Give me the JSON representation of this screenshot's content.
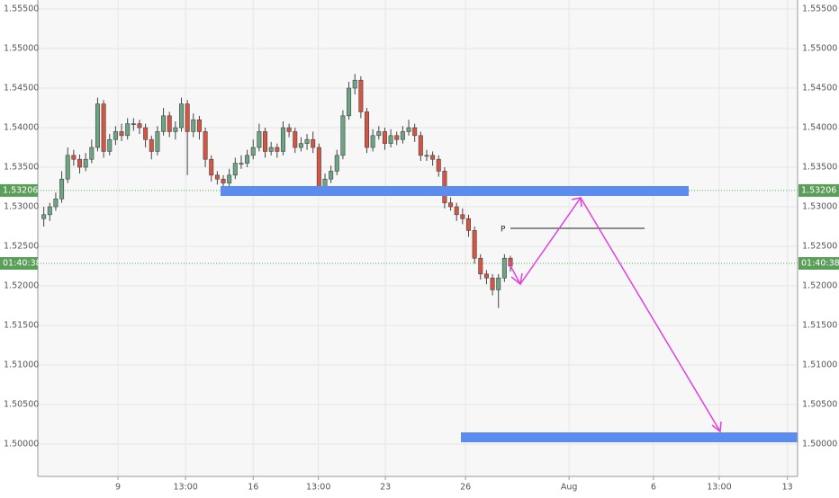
{
  "chart_data": {
    "type": "candlestick",
    "ylim": [
      1.49591,
      1.55614
    ],
    "yticks": [
      {
        "value": 1.5,
        "label": "1.50000"
      },
      {
        "value": 1.505,
        "label": "1.50500"
      },
      {
        "value": 1.51,
        "label": "1.51000"
      },
      {
        "value": 1.515,
        "label": "1.51500"
      },
      {
        "value": 1.52,
        "label": "1.52000"
      },
      {
        "value": 1.525,
        "label": "1.52500"
      },
      {
        "value": 1.53,
        "label": "1.53000"
      },
      {
        "value": 1.535,
        "label": "1.53500"
      },
      {
        "value": 1.54,
        "label": "1.54000"
      },
      {
        "value": 1.545,
        "label": "1.54500"
      },
      {
        "value": 1.55,
        "label": "1.55000"
      },
      {
        "value": 1.555,
        "label": "1.55500"
      }
    ],
    "xlim": [
      0,
      127
    ],
    "xticks": [
      {
        "value": 13.4,
        "label": "9"
      },
      {
        "value": 24.7,
        "label": "13:00"
      },
      {
        "value": 36,
        "label": "16"
      },
      {
        "value": 46.9,
        "label": "13:00"
      },
      {
        "value": 58.1,
        "label": "23"
      },
      {
        "value": 71.5,
        "label": "26"
      },
      {
        "value": 88.8,
        "label": "Aug"
      },
      {
        "value": 102.9,
        "label": "6"
      },
      {
        "value": 113.9,
        "label": "13:00"
      },
      {
        "value": 125.3,
        "label": "13"
      }
    ],
    "grid": true,
    "up_color": "#6ba583",
    "down_color": "#d75442",
    "price_levels": [
      {
        "value": 1.53206,
        "label": "1.53206"
      },
      {
        "value": 1.52284,
        "label": "01:40:38"
      }
    ],
    "annotations": {
      "pivot_label": "P"
    },
    "x": [
      1,
      2,
      3,
      4,
      5,
      6,
      7,
      8,
      9,
      10,
      11,
      12,
      13,
      14,
      15,
      16,
      17,
      18,
      19,
      20,
      21,
      22,
      23,
      24,
      25,
      26,
      27,
      28,
      29,
      30,
      31,
      32,
      33,
      34,
      35,
      36,
      37,
      38,
      39,
      40,
      41,
      42,
      43,
      44,
      45,
      46,
      47,
      48,
      49,
      50,
      51,
      52,
      53,
      54,
      55,
      56,
      57,
      58,
      59,
      60,
      61,
      62,
      63,
      64,
      65,
      66,
      67,
      68,
      69,
      70,
      71,
      72,
      73,
      74,
      75,
      76,
      77,
      78,
      79
    ],
    "candles": [
      [
        1.5285,
        1.53,
        1.5275,
        1.529
      ],
      [
        1.529,
        1.5305,
        1.5282,
        1.53
      ],
      [
        1.53,
        1.5318,
        1.5295,
        1.531
      ],
      [
        1.531,
        1.5345,
        1.5305,
        1.5335
      ],
      [
        1.5335,
        1.5375,
        1.533,
        1.5365
      ],
      [
        1.5365,
        1.5372,
        1.5352,
        1.536
      ],
      [
        1.536,
        1.5366,
        1.5342,
        1.535
      ],
      [
        1.535,
        1.5368,
        1.5345,
        1.536
      ],
      [
        1.536,
        1.5385,
        1.5355,
        1.5375
      ],
      [
        1.5375,
        1.5438,
        1.537,
        1.543
      ],
      [
        1.543,
        1.5435,
        1.5362,
        1.537
      ],
      [
        1.537,
        1.5392,
        1.5365,
        1.5385
      ],
      [
        1.5385,
        1.5402,
        1.5378,
        1.5395
      ],
      [
        1.5395,
        1.5405,
        1.5383,
        1.539
      ],
      [
        1.539,
        1.5412,
        1.5385,
        1.5405
      ],
      [
        1.5405,
        1.5412,
        1.5396,
        1.5405
      ],
      [
        1.5405,
        1.541,
        1.5392,
        1.54
      ],
      [
        1.54,
        1.5405,
        1.5375,
        1.5385
      ],
      [
        1.5385,
        1.539,
        1.536,
        1.537
      ],
      [
        1.537,
        1.5402,
        1.5365,
        1.5395
      ],
      [
        1.5395,
        1.5425,
        1.539,
        1.5415
      ],
      [
        1.5415,
        1.542,
        1.5388,
        1.5395
      ],
      [
        1.5395,
        1.5408,
        1.5385,
        1.54
      ],
      [
        1.54,
        1.5438,
        1.5395,
        1.543
      ],
      [
        1.543,
        1.5435,
        1.534,
        1.5395
      ],
      [
        1.5395,
        1.5418,
        1.5388,
        1.541
      ],
      [
        1.541,
        1.5415,
        1.5385,
        1.5395
      ],
      [
        1.5395,
        1.54,
        1.535,
        1.536
      ],
      [
        1.536,
        1.5365,
        1.5332,
        1.534
      ],
      [
        1.534,
        1.5345,
        1.5328,
        1.5335
      ],
      [
        1.5335,
        1.534,
        1.5322,
        1.533
      ],
      [
        1.533,
        1.5348,
        1.5325,
        1.534
      ],
      [
        1.534,
        1.5362,
        1.5335,
        1.5355
      ],
      [
        1.5355,
        1.5365,
        1.5348,
        1.5355
      ],
      [
        1.5355,
        1.5372,
        1.535,
        1.5365
      ],
      [
        1.5365,
        1.5385,
        1.536,
        1.5375
      ],
      [
        1.5375,
        1.5405,
        1.537,
        1.5395
      ],
      [
        1.5395,
        1.54,
        1.5362,
        1.537
      ],
      [
        1.537,
        1.5382,
        1.5365,
        1.5375
      ],
      [
        1.5375,
        1.538,
        1.5362,
        1.537
      ],
      [
        1.537,
        1.5408,
        1.5365,
        1.54
      ],
      [
        1.54,
        1.5405,
        1.5388,
        1.5395
      ],
      [
        1.5395,
        1.54,
        1.5368,
        1.5375
      ],
      [
        1.5375,
        1.5388,
        1.537,
        1.538
      ],
      [
        1.538,
        1.5392,
        1.5372,
        1.5385
      ],
      [
        1.5385,
        1.5395,
        1.5368,
        1.5375
      ],
      [
        1.5375,
        1.538,
        1.5318,
        1.5325
      ],
      [
        1.5325,
        1.5342,
        1.532,
        1.5335
      ],
      [
        1.5335,
        1.5352,
        1.533,
        1.5345
      ],
      [
        1.5345,
        1.5372,
        1.534,
        1.5365
      ],
      [
        1.5365,
        1.5422,
        1.536,
        1.5415
      ],
      [
        1.5415,
        1.5458,
        1.541,
        1.545
      ],
      [
        1.545,
        1.5468,
        1.5442,
        1.546
      ],
      [
        1.546,
        1.5465,
        1.5412,
        1.542
      ],
      [
        1.542,
        1.5425,
        1.5368,
        1.5375
      ],
      [
        1.5375,
        1.5398,
        1.537,
        1.539
      ],
      [
        1.539,
        1.5402,
        1.5385,
        1.5395
      ],
      [
        1.5395,
        1.54,
        1.5372,
        1.538
      ],
      [
        1.538,
        1.5398,
        1.5375,
        1.539
      ],
      [
        1.539,
        1.5395,
        1.5378,
        1.5385
      ],
      [
        1.5385,
        1.5402,
        1.538,
        1.5395
      ],
      [
        1.5395,
        1.541,
        1.539,
        1.54
      ],
      [
        1.54,
        1.5405,
        1.5382,
        1.539
      ],
      [
        1.539,
        1.5395,
        1.5358,
        1.5365
      ],
      [
        1.5365,
        1.5372,
        1.5358,
        1.5365
      ],
      [
        1.5365,
        1.537,
        1.5352,
        1.536
      ],
      [
        1.536,
        1.5365,
        1.5338,
        1.5345
      ],
      [
        1.5345,
        1.535,
        1.5298,
        1.5305
      ],
      [
        1.5305,
        1.5312,
        1.5295,
        1.53
      ],
      [
        1.53,
        1.5305,
        1.5282,
        1.529
      ],
      [
        1.529,
        1.5298,
        1.5278,
        1.5285
      ],
      [
        1.5285,
        1.529,
        1.5262,
        1.527
      ],
      [
        1.527,
        1.5275,
        1.5228,
        1.5235
      ],
      [
        1.5235,
        1.524,
        1.5208,
        1.5215
      ],
      [
        1.5215,
        1.522,
        1.5202,
        1.521
      ],
      [
        1.521,
        1.5215,
        1.5188,
        1.5195
      ],
      [
        1.5195,
        1.5215,
        1.5172,
        1.521
      ],
      [
        1.521,
        1.524,
        1.5205,
        1.5235
      ],
      [
        1.5235,
        1.5238,
        1.5218,
        1.5225
      ]
    ]
  }
}
